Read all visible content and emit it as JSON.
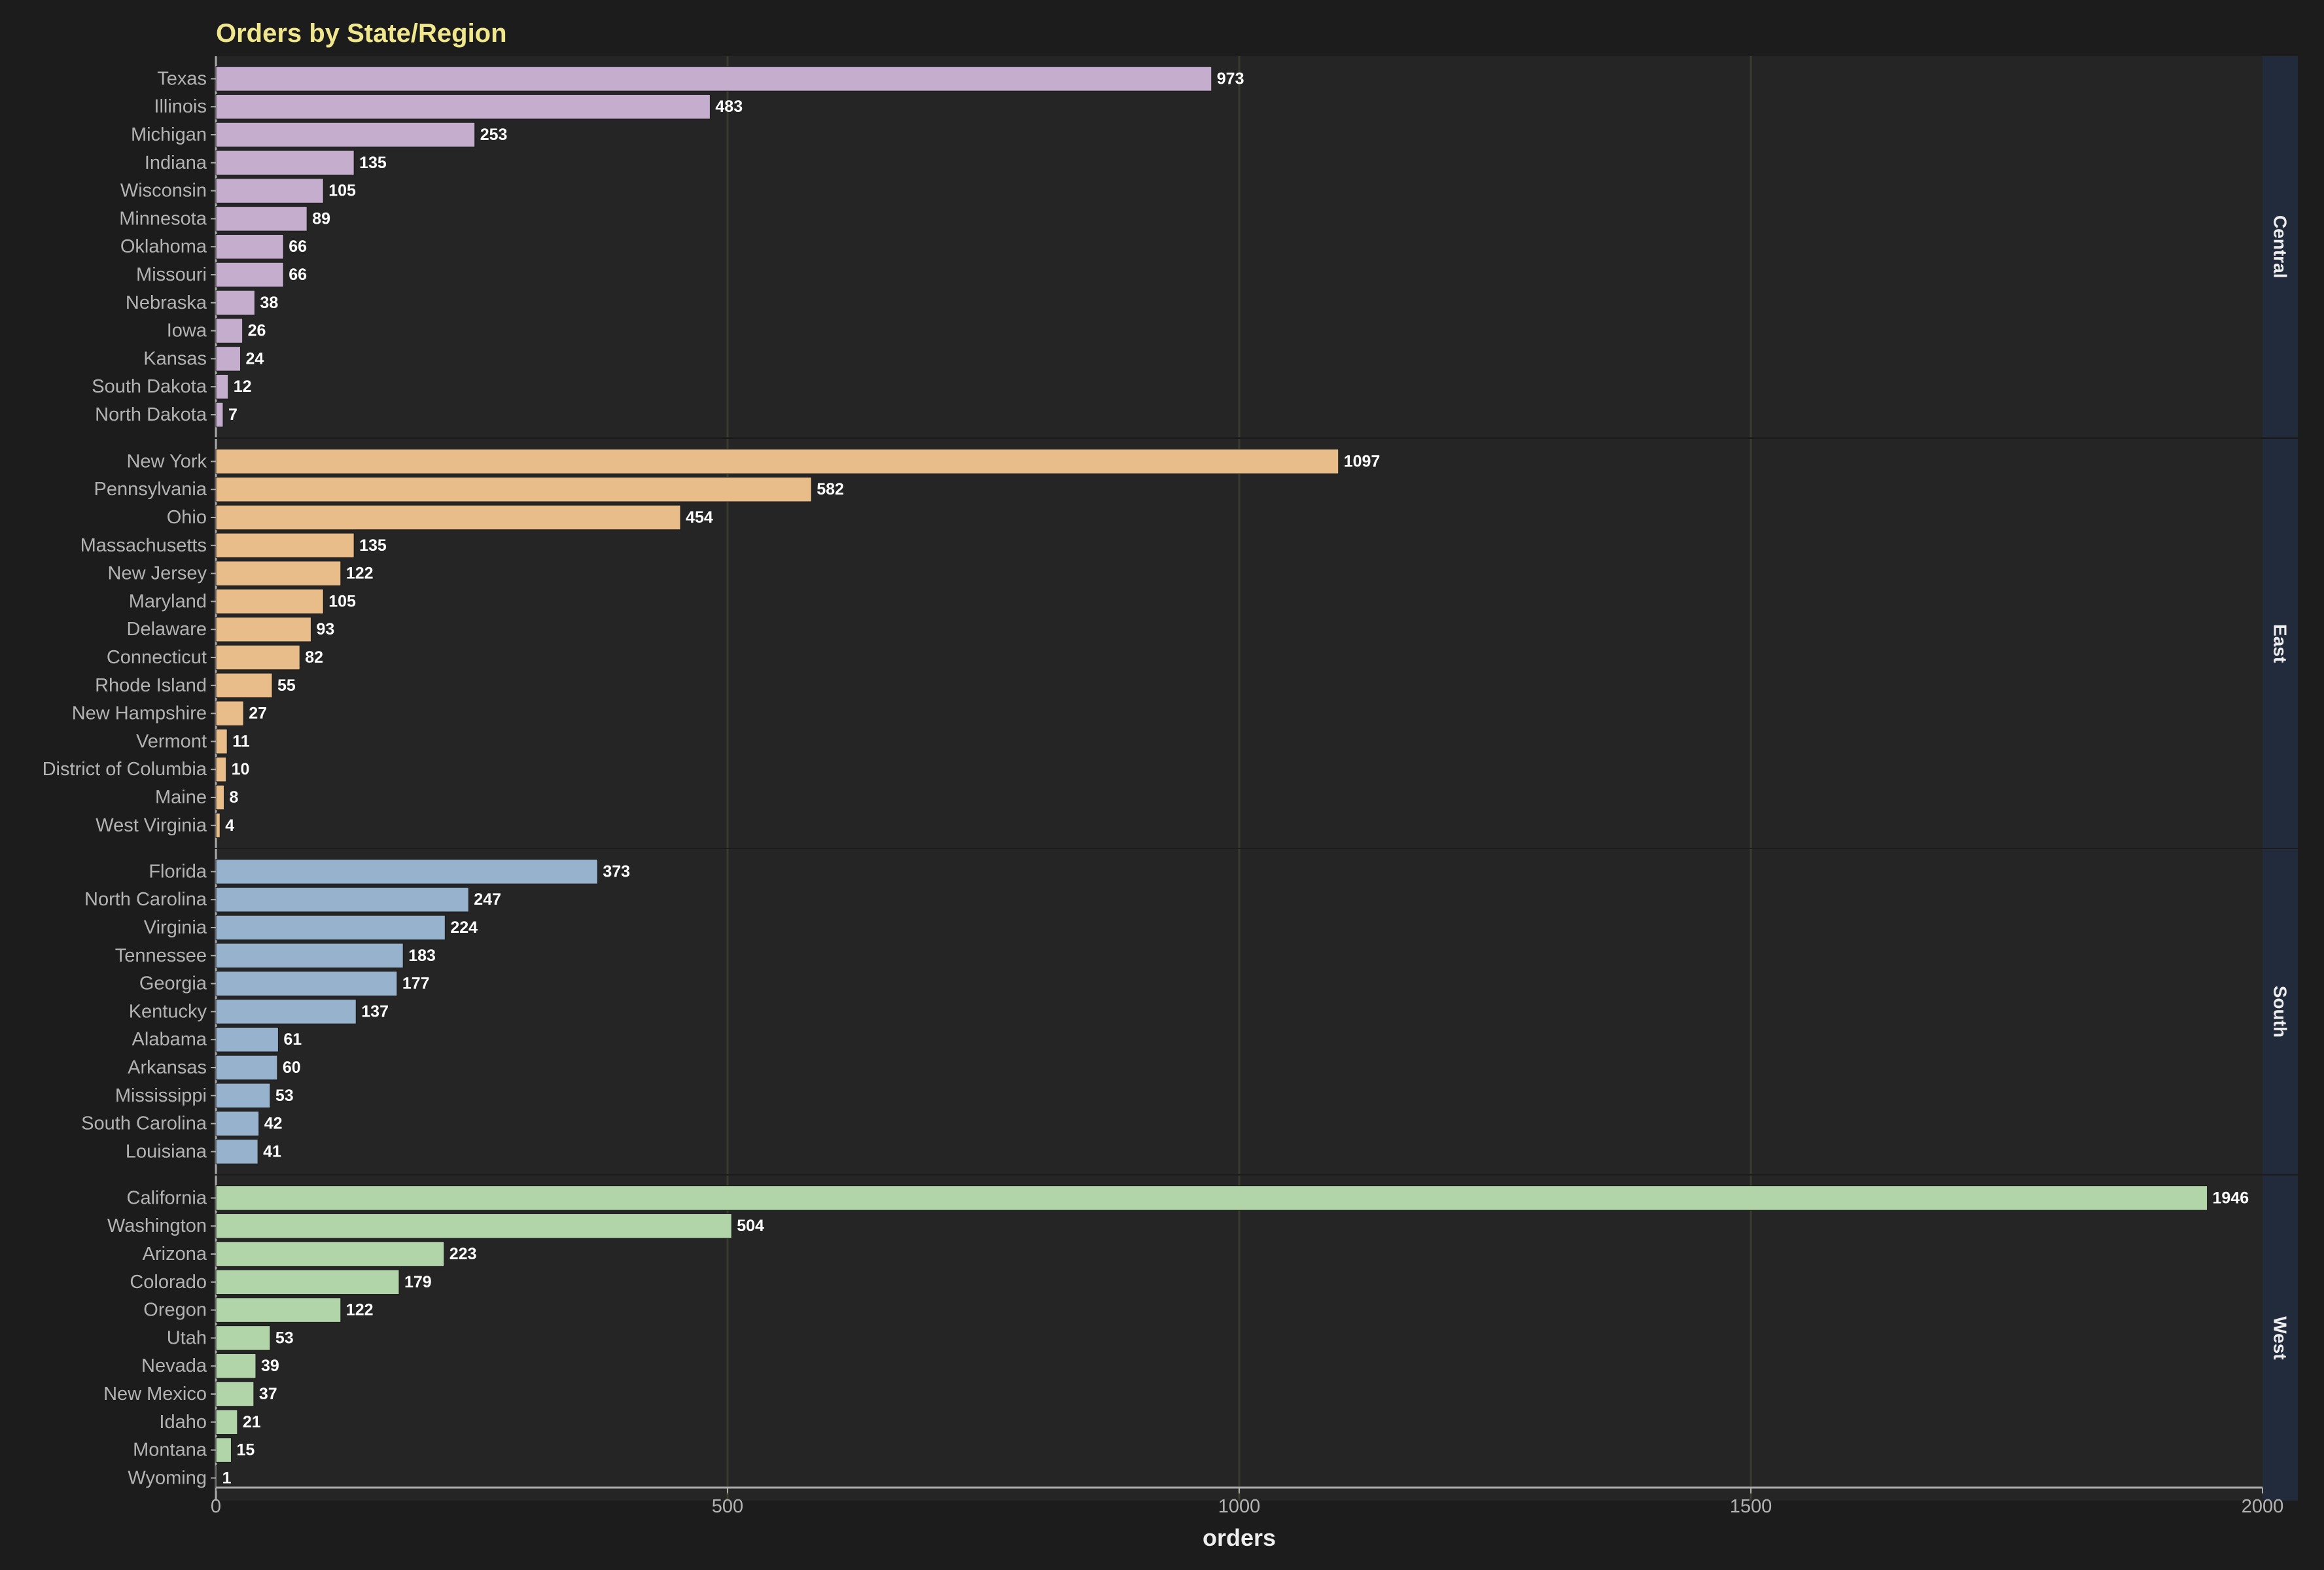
{
  "chart_data": {
    "type": "bar",
    "orientation": "horizontal",
    "faceted": true,
    "title": "Orders by State/Region",
    "xlabel": "orders",
    "ylabel": "",
    "xlim": [
      0,
      2000
    ],
    "x_ticks": [
      0,
      500,
      1000,
      1500,
      2000
    ],
    "grid": "vertical major",
    "data_labels": true,
    "colors": {
      "background": "#1c1c1c",
      "panel": "#252525",
      "strip": "#212b3b",
      "title": "#f0e68c",
      "gridline": "#3b3a2e"
    },
    "facets": [
      {
        "name": "Central",
        "color": "#c5aecd",
        "categories": [
          "Texas",
          "Illinois",
          "Michigan",
          "Indiana",
          "Wisconsin",
          "Minnesota",
          "Oklahoma",
          "Missouri",
          "Nebraska",
          "Iowa",
          "Kansas",
          "South Dakota",
          "North Dakota"
        ],
        "values": [
          973,
          483,
          253,
          135,
          105,
          89,
          66,
          66,
          38,
          26,
          24,
          12,
          7
        ]
      },
      {
        "name": "East",
        "color": "#e8bd8a",
        "categories": [
          "New York",
          "Pennsylvania",
          "Ohio",
          "Massachusetts",
          "New Jersey",
          "Maryland",
          "Delaware",
          "Connecticut",
          "Rhode Island",
          "New Hampshire",
          "Vermont",
          "District of Columbia",
          "Maine",
          "West Virginia"
        ],
        "values": [
          1097,
          582,
          454,
          135,
          122,
          105,
          93,
          82,
          55,
          27,
          11,
          10,
          8,
          4
        ]
      },
      {
        "name": "South",
        "color": "#97b2cd",
        "categories": [
          "Florida",
          "North Carolina",
          "Virginia",
          "Tennessee",
          "Georgia",
          "Kentucky",
          "Alabama",
          "Arkansas",
          "Mississippi",
          "South Carolina",
          "Louisiana"
        ],
        "values": [
          373,
          247,
          224,
          183,
          177,
          137,
          61,
          60,
          53,
          42,
          41
        ]
      },
      {
        "name": "West",
        "color": "#b1d4a9",
        "categories": [
          "California",
          "Washington",
          "Arizona",
          "Colorado",
          "Oregon",
          "Utah",
          "Nevada",
          "New Mexico",
          "Idaho",
          "Montana",
          "Wyoming"
        ],
        "values": [
          1946,
          504,
          223,
          179,
          122,
          53,
          39,
          37,
          21,
          15,
          1
        ]
      }
    ]
  }
}
